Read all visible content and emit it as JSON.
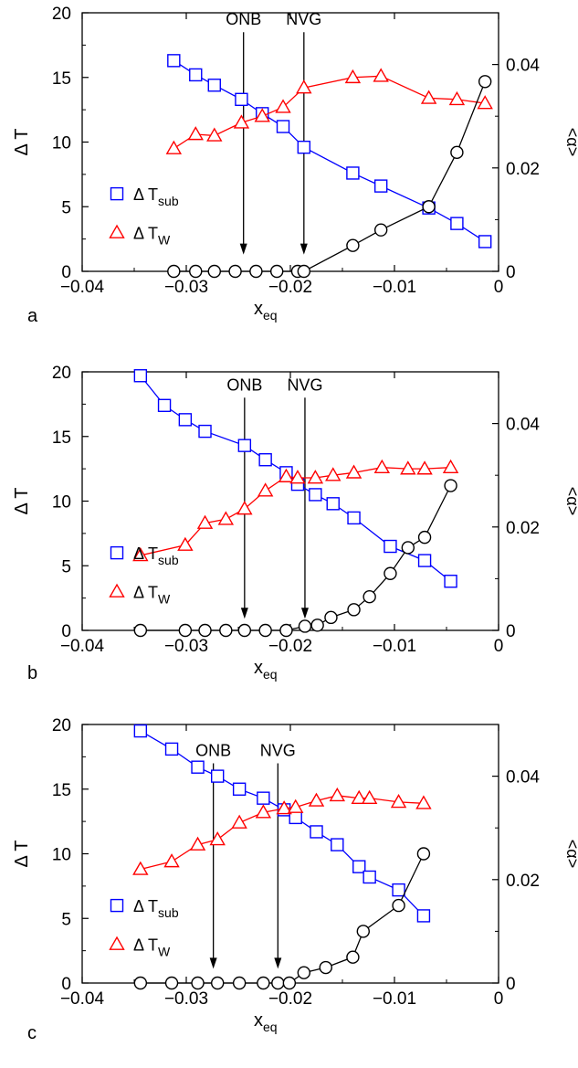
{
  "colors": {
    "sub": "#0000ff",
    "wall": "#ff0000",
    "alpha": "#000000"
  },
  "chart_data": [
    {
      "panel_label": "a",
      "type": "line",
      "xlabel": "x",
      "xlabel_sub": "eq",
      "ylabel": "Δ T",
      "ylabel_right": "<α>",
      "xlim": [
        -0.04,
        0
      ],
      "ylim": [
        0,
        20
      ],
      "ylim_right": [
        0,
        0.05
      ],
      "xticks": [
        "−0.04",
        "−0.03",
        "−0.02",
        "−0.01",
        "0"
      ],
      "yticks": [
        "0",
        "5",
        "10",
        "15",
        "20"
      ],
      "yticks_right": [
        "0",
        "0.02",
        "0.04"
      ],
      "legend": {
        "placement": "lower-left",
        "sub_label": "Δ T",
        "sub_label_sub": "sub",
        "wall_label": "Δ T",
        "wall_label_sub": "W"
      },
      "annotations": [
        {
          "text": "ONB",
          "x": -0.0245,
          "y_top": 18.5,
          "y_tip": 1.3
        },
        {
          "text": "NVG",
          "x": -0.0187,
          "y_top": 18.5,
          "y_tip": 1.3
        }
      ],
      "series": [
        {
          "name": "Δ Tsub",
          "axis": "left",
          "marker": "square",
          "x": [
            -0.0312,
            -0.0291,
            -0.0273,
            -0.0247,
            -0.0227,
            -0.0207,
            -0.0187,
            -0.014,
            -0.0113,
            -0.0067,
            -0.004,
            -0.0013
          ],
          "y": [
            16.3,
            15.2,
            14.4,
            13.3,
            12.2,
            11.2,
            9.6,
            7.6,
            6.6,
            4.9,
            3.7,
            2.3
          ]
        },
        {
          "name": "Δ TW",
          "axis": "left",
          "marker": "triangle",
          "x": [
            -0.0312,
            -0.0291,
            -0.0273,
            -0.0247,
            -0.0227,
            -0.0207,
            -0.0187,
            -0.014,
            -0.0113,
            -0.0067,
            -0.004,
            -0.0013
          ],
          "y": [
            9.5,
            10.6,
            10.5,
            11.5,
            12.0,
            12.7,
            14.2,
            15.0,
            15.1,
            13.4,
            13.3,
            13.0
          ]
        },
        {
          "name": "<α>",
          "axis": "right",
          "marker": "circle",
          "x": [
            -0.0312,
            -0.0291,
            -0.0273,
            -0.0253,
            -0.0233,
            -0.0213,
            -0.0193,
            -0.0187,
            -0.014,
            -0.0113,
            -0.0067,
            -0.004,
            -0.0013
          ],
          "y": [
            0,
            0,
            0,
            0,
            0,
            0,
            0,
            0,
            0.005,
            0.008,
            0.0125,
            0.023,
            0.0367
          ]
        }
      ]
    },
    {
      "panel_label": "b",
      "type": "line",
      "xlabel": "x",
      "xlabel_sub": "eq",
      "ylabel": "Δ T",
      "ylabel_right": "<α>",
      "xlim": [
        -0.04,
        0
      ],
      "ylim": [
        0,
        20
      ],
      "ylim_right": [
        0,
        0.05
      ],
      "xticks": [
        "−0.04",
        "−0.03",
        "−0.02",
        "−0.01",
        "0"
      ],
      "yticks": [
        "0",
        "5",
        "10",
        "15",
        "20"
      ],
      "yticks_right": [
        "0",
        "0.02",
        "0.04"
      ],
      "legend": {
        "placement": "lower-left",
        "sub_label": "Δ T",
        "sub_label_sub": "sub",
        "wall_label": "Δ T",
        "wall_label_sub": "W"
      },
      "annotations": [
        {
          "text": "ONB",
          "x": -0.0244,
          "y_top": 18.0,
          "y_tip": 0.9
        },
        {
          "text": "NVG",
          "x": -0.0186,
          "y_top": 18.0,
          "y_tip": 0.9
        }
      ],
      "series": [
        {
          "name": "Δ Tsub",
          "axis": "left",
          "marker": "square",
          "x": [
            -0.0344,
            -0.0321,
            -0.0301,
            -0.0282,
            -0.0244,
            -0.0224,
            -0.0204,
            -0.0193,
            -0.0176,
            -0.0159,
            -0.0139,
            -0.0104,
            -0.0071,
            -0.0046
          ],
          "y": [
            19.7,
            17.4,
            16.3,
            15.4,
            14.3,
            13.2,
            12.2,
            11.3,
            10.5,
            9.8,
            8.7,
            6.5,
            5.4,
            3.8
          ]
        },
        {
          "name": "Δ TW",
          "axis": "left",
          "marker": "triangle",
          "x": [
            -0.0344,
            -0.0301,
            -0.0282,
            -0.0262,
            -0.0244,
            -0.0224,
            -0.0204,
            -0.0193,
            -0.0176,
            -0.0159,
            -0.0139,
            -0.0112,
            -0.0087,
            -0.0071,
            -0.0046
          ],
          "y": [
            5.8,
            6.6,
            8.3,
            8.6,
            9.4,
            10.8,
            11.9,
            11.8,
            11.8,
            12.0,
            12.2,
            12.6,
            12.5,
            12.5,
            12.6
          ]
        },
        {
          "name": "<α>",
          "axis": "right",
          "marker": "circle",
          "x": [
            -0.0344,
            -0.0301,
            -0.0282,
            -0.0262,
            -0.0244,
            -0.0224,
            -0.0204,
            -0.0186,
            -0.0174,
            -0.0161,
            -0.0139,
            -0.0124,
            -0.0104,
            -0.0087,
            -0.0071,
            -0.0046
          ],
          "y": [
            0,
            0,
            0,
            0,
            0,
            0,
            0,
            0.0008,
            0.001,
            0.0025,
            0.004,
            0.0065,
            0.011,
            0.016,
            0.018,
            0.028
          ]
        }
      ]
    },
    {
      "panel_label": "c",
      "type": "line",
      "xlabel": "x",
      "xlabel_sub": "eq",
      "ylabel": "Δ T",
      "ylabel_right": "<α>",
      "xlim": [
        -0.04,
        0
      ],
      "ylim": [
        0,
        20
      ],
      "ylim_right": [
        0,
        0.05
      ],
      "xticks": [
        "−0.04",
        "−0.03",
        "−0.02",
        "−0.01",
        "0"
      ],
      "yticks": [
        "0",
        "5",
        "10",
        "15",
        "20"
      ],
      "yticks_right": [
        "0",
        "0.02",
        "0.04"
      ],
      "legend": {
        "placement": "lower-left",
        "sub_label": "Δ T",
        "sub_label_sub": "sub",
        "wall_label": "Δ T",
        "wall_label_sub": "W"
      },
      "annotations": [
        {
          "text": "ONB",
          "x": -0.0274,
          "y_top": 17.0,
          "y_tip": 1.1
        },
        {
          "text": "NVG",
          "x": -0.0212,
          "y_top": 17.0,
          "y_tip": 1.1
        }
      ],
      "series": [
        {
          "name": "Δ Tsub",
          "axis": "left",
          "marker": "square",
          "x": [
            -0.0344,
            -0.0314,
            -0.0289,
            -0.027,
            -0.0249,
            -0.0226,
            -0.0206,
            -0.0195,
            -0.0175,
            -0.0155,
            -0.0134,
            -0.0124,
            -0.0096,
            -0.0072
          ],
          "y": [
            19.5,
            18.1,
            16.7,
            16.0,
            15.0,
            14.3,
            13.4,
            12.8,
            11.7,
            10.7,
            9.0,
            8.2,
            7.2,
            5.2
          ]
        },
        {
          "name": "Δ TW",
          "axis": "left",
          "marker": "triangle",
          "x": [
            -0.0344,
            -0.0314,
            -0.0289,
            -0.027,
            -0.0249,
            -0.0226,
            -0.0206,
            -0.0195,
            -0.0175,
            -0.0155,
            -0.0134,
            -0.0124,
            -0.0096,
            -0.0072
          ],
          "y": [
            8.8,
            9.4,
            10.7,
            11.1,
            12.4,
            13.2,
            13.5,
            13.6,
            14.1,
            14.5,
            14.3,
            14.3,
            14.0,
            13.9
          ]
        },
        {
          "name": "<α>",
          "axis": "right",
          "marker": "circle",
          "x": [
            -0.0344,
            -0.0314,
            -0.0289,
            -0.027,
            -0.0249,
            -0.0226,
            -0.0212,
            -0.0201,
            -0.0187,
            -0.0166,
            -0.014,
            -0.013,
            -0.0096,
            -0.0072
          ],
          "y": [
            0,
            0,
            0,
            0,
            0,
            0,
            0,
            0,
            0.002,
            0.003,
            0.005,
            0.01,
            0.015,
            0.025
          ]
        }
      ]
    }
  ]
}
